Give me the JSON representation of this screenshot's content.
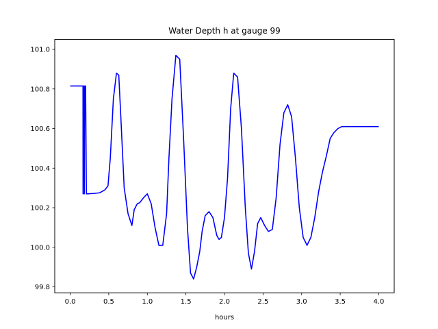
{
  "chart_data": {
    "type": "line",
    "title": "Water Depth h at gauge 99",
    "xlabel": "hours",
    "ylabel": "",
    "xlim": [
      -0.2,
      4.2
    ],
    "ylim": [
      99.77,
      101.05
    ],
    "xticks": [
      0.0,
      0.5,
      1.0,
      1.5,
      2.0,
      2.5,
      3.0,
      3.5,
      4.0
    ],
    "xtick_labels": [
      "0.0",
      "0.5",
      "1.0",
      "1.5",
      "2.0",
      "2.5",
      "3.0",
      "3.5",
      "4.0"
    ],
    "yticks": [
      99.8,
      100.0,
      100.2,
      100.4,
      100.6,
      100.8,
      101.0
    ],
    "ytick_labels": [
      "99.8",
      "100.0",
      "100.2",
      "100.4",
      "100.6",
      "100.8",
      "101.0"
    ],
    "grid": false,
    "series": [
      {
        "color": "#0000ff",
        "x": [
          0.0,
          0.166,
          0.167,
          0.172,
          0.178,
          0.183,
          0.19,
          0.196,
          0.2,
          0.21,
          0.22,
          0.3,
          0.38,
          0.45,
          0.49,
          0.52,
          0.56,
          0.6,
          0.63,
          0.66,
          0.7,
          0.75,
          0.8,
          0.83,
          0.87,
          0.9,
          0.95,
          1.0,
          1.05,
          1.1,
          1.15,
          1.2,
          1.25,
          1.28,
          1.32,
          1.37,
          1.42,
          1.47,
          1.52,
          1.56,
          1.6,
          1.64,
          1.68,
          1.71,
          1.75,
          1.8,
          1.85,
          1.9,
          1.93,
          1.96,
          2.0,
          2.04,
          2.08,
          2.12,
          2.17,
          2.22,
          2.27,
          2.31,
          2.35,
          2.39,
          2.43,
          2.47,
          2.52,
          2.57,
          2.62,
          2.67,
          2.72,
          2.77,
          2.82,
          2.87,
          2.92,
          2.97,
          3.02,
          3.07,
          3.12,
          3.17,
          3.22,
          3.27,
          3.32,
          3.37,
          3.42,
          3.47,
          3.52,
          3.57,
          3.62,
          3.67,
          3.72,
          3.77,
          3.82,
          3.87,
          3.92,
          3.96,
          4.0
        ],
        "y": [
          100.815,
          100.815,
          100.27,
          100.815,
          100.815,
          100.27,
          100.815,
          100.815,
          100.815,
          100.27,
          100.27,
          100.272,
          100.275,
          100.29,
          100.31,
          100.45,
          100.75,
          100.88,
          100.87,
          100.63,
          100.3,
          100.17,
          100.11,
          100.19,
          100.22,
          100.225,
          100.25,
          100.27,
          100.22,
          100.1,
          100.01,
          100.01,
          100.17,
          100.45,
          100.75,
          100.97,
          100.95,
          100.55,
          100.1,
          99.87,
          99.84,
          99.9,
          99.98,
          100.08,
          100.16,
          100.18,
          100.15,
          100.06,
          100.04,
          100.05,
          100.15,
          100.35,
          100.7,
          100.88,
          100.86,
          100.6,
          100.2,
          99.97,
          99.89,
          99.98,
          100.12,
          100.15,
          100.11,
          100.08,
          100.09,
          100.25,
          100.52,
          100.68,
          100.72,
          100.66,
          100.45,
          100.2,
          100.05,
          100.01,
          100.05,
          100.15,
          100.28,
          100.38,
          100.46,
          100.55,
          100.58,
          100.6,
          100.61,
          100.61,
          100.61,
          100.61,
          100.61,
          100.61,
          100.61,
          100.61,
          100.61,
          100.61,
          100.61
        ]
      }
    ]
  }
}
